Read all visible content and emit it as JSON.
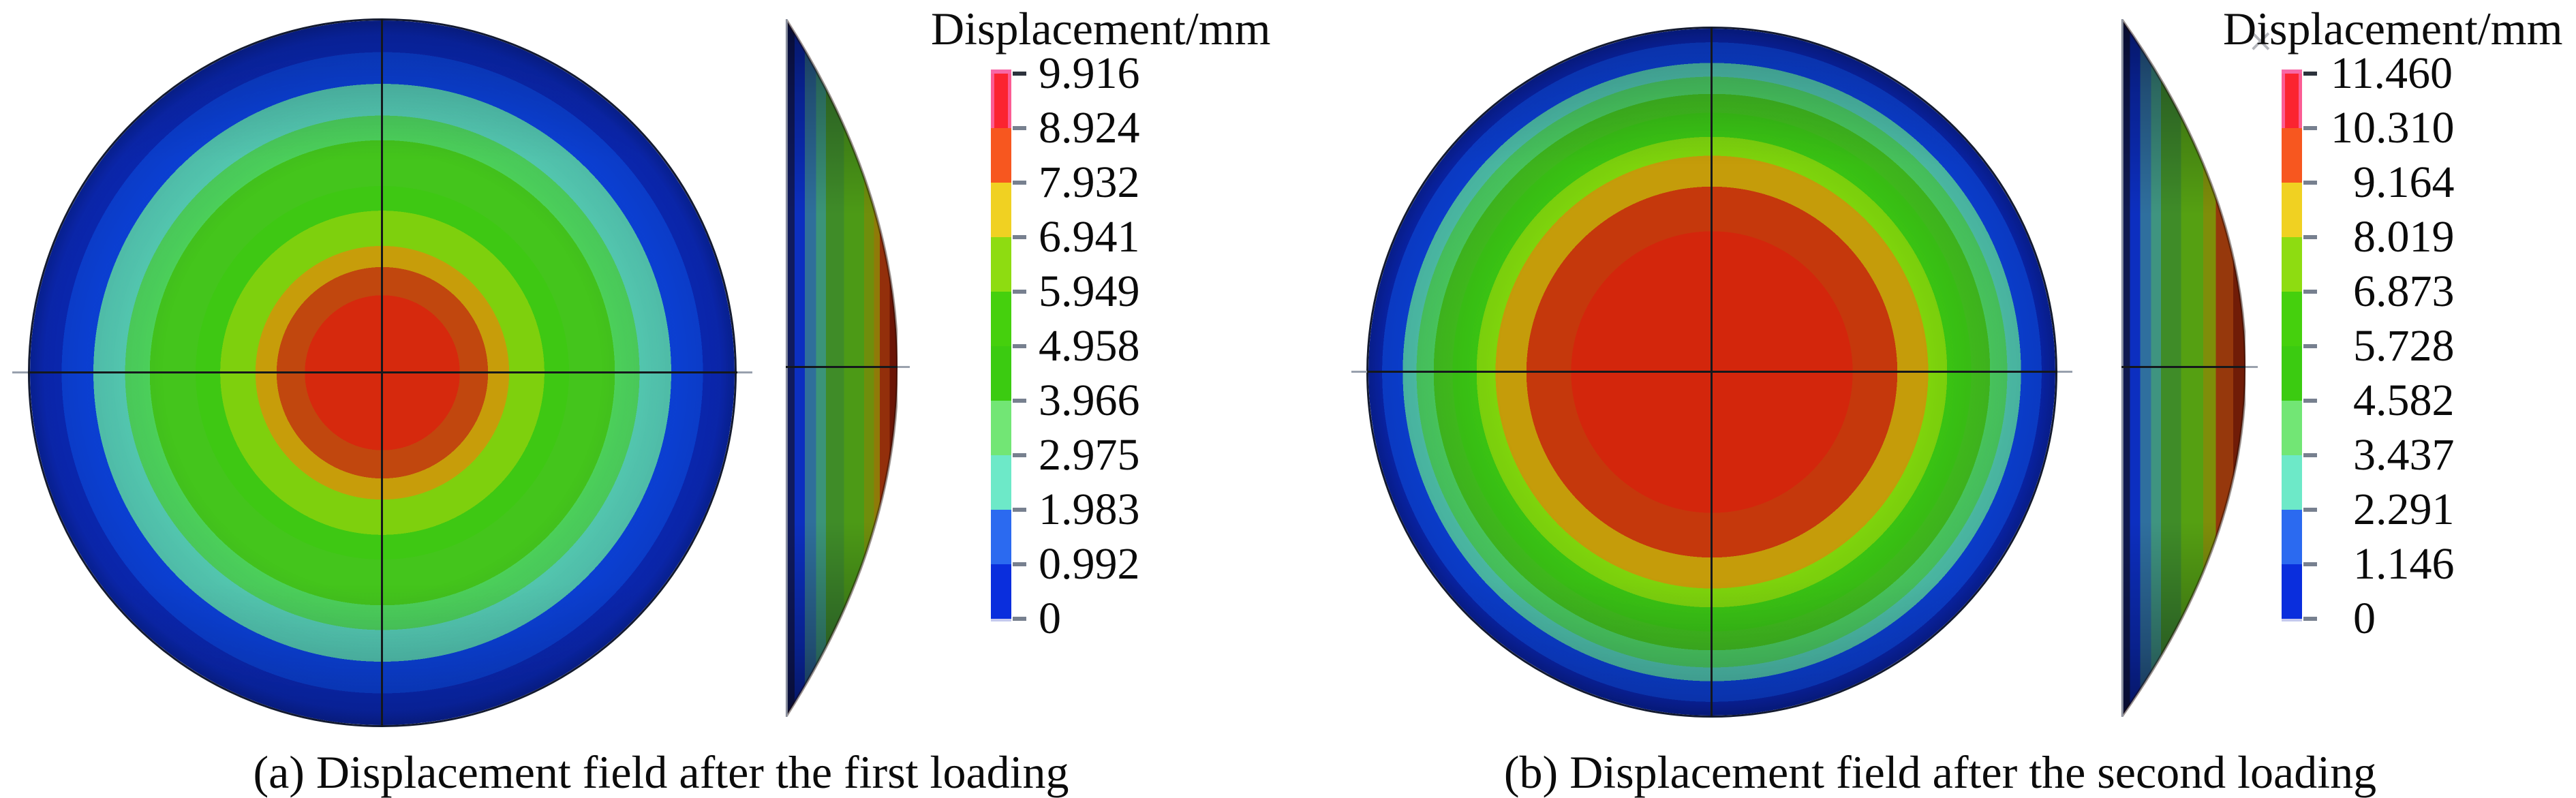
{
  "figure": {
    "panels": [
      {
        "id": "a",
        "caption": "(a) Displacement field after the first loading",
        "legend": {
          "title": "Displacement/mm",
          "labels": [
            "9.916",
            "8.924",
            "7.932",
            "6.941",
            "5.949",
            "4.958",
            "3.966",
            "2.975",
            "1.983",
            "0.992",
            "0"
          ],
          "colors": [
            "#fb2430",
            "#f7571f",
            "#f0d122",
            "#8edc11",
            "#45d00d",
            "#3bcb11",
            "#72e675",
            "#6de9c8",
            "#2b6af0",
            "#0a2edd"
          ],
          "overmax_color": "#f768a6"
        },
        "rings": [
          {
            "c": "#d6290d",
            "to": 0.22
          },
          {
            "c": "#c1470e",
            "to": 0.3
          },
          {
            "c": "#c79d0a",
            "to": 0.36
          },
          {
            "c": "#7ed00d",
            "to": 0.46
          },
          {
            "c": "#3ec813",
            "to": 0.53
          },
          {
            "c": "#44c51c",
            "to": 0.66
          },
          {
            "c": "#4ed45c",
            "to": 0.73
          },
          {
            "c": "#58d2b7",
            "to": 0.82
          },
          {
            "c": "#0c46e8",
            "to": 0.91
          },
          {
            "c": "#0b2cc8",
            "to": 1
          }
        ],
        "profile": [
          {
            "c": "#101b5e",
            "to": 0.08
          },
          {
            "c": "#0c2fc0",
            "to": 0.17
          },
          {
            "c": "#2f6f9a",
            "to": 0.27
          },
          {
            "c": "#3b9478",
            "to": 0.36
          },
          {
            "c": "#3f8c28",
            "to": 0.52
          },
          {
            "c": "#4c9a16",
            "to": 0.7
          },
          {
            "c": "#6f8e0c",
            "to": 0.79
          },
          {
            "c": "#8f7a08",
            "to": 0.84
          },
          {
            "c": "#932f0b",
            "to": 0.93
          },
          {
            "c": "#6b1506",
            "to": 1
          }
        ]
      },
      {
        "id": "b",
        "caption": "(b) Displacement field after the second loading",
        "triad_marker": "×",
        "legend": {
          "title": "Displacement/mm",
          "labels": [
            "11.460",
            "10.310",
            "9.164",
            "8.019",
            "6.873",
            "5.728",
            "4.582",
            "3.437",
            "2.291",
            "1.146",
            "0"
          ],
          "colors": [
            "#fb2430",
            "#f7571f",
            "#f0d122",
            "#8edc11",
            "#45d00d",
            "#3bcb11",
            "#72e675",
            "#6de9c8",
            "#2b6af0",
            "#0a2edd"
          ],
          "overmax_color": "#f768a6"
        },
        "rings": [
          {
            "c": "#d3260c",
            "to": 0.41
          },
          {
            "c": "#c5380c",
            "to": 0.54
          },
          {
            "c": "#c59c0a",
            "to": 0.63
          },
          {
            "c": "#7fd60c",
            "to": 0.685
          },
          {
            "c": "#3cca12",
            "to": 0.755
          },
          {
            "c": "#44c61b",
            "to": 0.81
          },
          {
            "c": "#4fd862",
            "to": 0.86
          },
          {
            "c": "#55d2b5",
            "to": 0.9
          },
          {
            "c": "#0c46e8",
            "to": 0.96
          },
          {
            "c": "#0a28c0",
            "to": 1
          }
        ],
        "profile": [
          {
            "c": "#0f1950",
            "to": 0.07
          },
          {
            "c": "#0c2fc0",
            "to": 0.15
          },
          {
            "c": "#2f6f9e",
            "to": 0.24
          },
          {
            "c": "#3f9480",
            "to": 0.32
          },
          {
            "c": "#3f8c28",
            "to": 0.48
          },
          {
            "c": "#55a012",
            "to": 0.66
          },
          {
            "c": "#7e8e0a",
            "to": 0.76
          },
          {
            "c": "#96380c",
            "to": 0.9
          },
          {
            "c": "#701c07",
            "to": 1
          }
        ]
      }
    ]
  },
  "chart_data": [
    {
      "type": "heatmap",
      "variant": "axisymmetric-displacement-contour",
      "title": "(a) Displacement field after the first loading",
      "legend_title": "Displacement/mm",
      "unit": "mm",
      "min": 0,
      "max": 9.916,
      "levels": [
        0,
        0.992,
        1.983,
        2.975,
        3.966,
        4.958,
        5.949,
        6.941,
        7.932,
        8.924,
        9.916
      ],
      "band_colors_low_to_high": [
        "#0a2edd",
        "#2b6af0",
        "#6de9c8",
        "#72e675",
        "#3bcb11",
        "#45d00d",
        "#8edc11",
        "#f0d122",
        "#f7571f",
        "#fb2430"
      ],
      "center_value": 9.916,
      "edge_value": 0,
      "views": [
        "front-circular-contour",
        "side-deflection-profile"
      ],
      "legend_position": "right"
    },
    {
      "type": "heatmap",
      "variant": "axisymmetric-displacement-contour",
      "title": "(b) Displacement field after the second loading",
      "legend_title": "Displacement/mm",
      "unit": "mm",
      "min": 0,
      "max": 11.46,
      "levels": [
        0,
        1.146,
        2.291,
        3.437,
        4.582,
        5.728,
        6.873,
        8.019,
        9.164,
        10.31,
        11.46
      ],
      "band_colors_low_to_high": [
        "#0a2edd",
        "#2b6af0",
        "#6de9c8",
        "#72e675",
        "#3bcb11",
        "#45d00d",
        "#8edc11",
        "#f0d122",
        "#f7571f",
        "#fb2430"
      ],
      "center_value": 11.46,
      "edge_value": 0,
      "views": [
        "front-circular-contour",
        "side-deflection-profile"
      ],
      "legend_position": "right"
    }
  ]
}
